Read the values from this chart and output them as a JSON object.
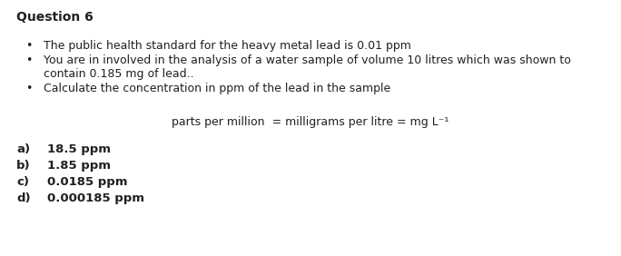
{
  "title": "Question 6",
  "bullet1": "The public health standard for the heavy metal lead is 0.01 ppm",
  "bullet2a": "You are in involved in the analysis of a water sample of volume 10 litres which was shown to",
  "bullet2b": "contain 0.185 mg of lead..",
  "bullet3": "Calculate the concentration in ppm of the lead in the sample",
  "formula": "parts per million  = milligrams per litre = mg L⁻¹",
  "options_labels": [
    "a)",
    "b)",
    "c)",
    "d)"
  ],
  "options_values": [
    "18.5 ppm",
    "1.85 ppm",
    "0.0185 ppm",
    "0.000185 ppm"
  ],
  "background_color": "#ffffff",
  "text_color": "#231f20",
  "title_fontsize": 10,
  "body_fontsize": 9,
  "options_fontsize": 9.5
}
